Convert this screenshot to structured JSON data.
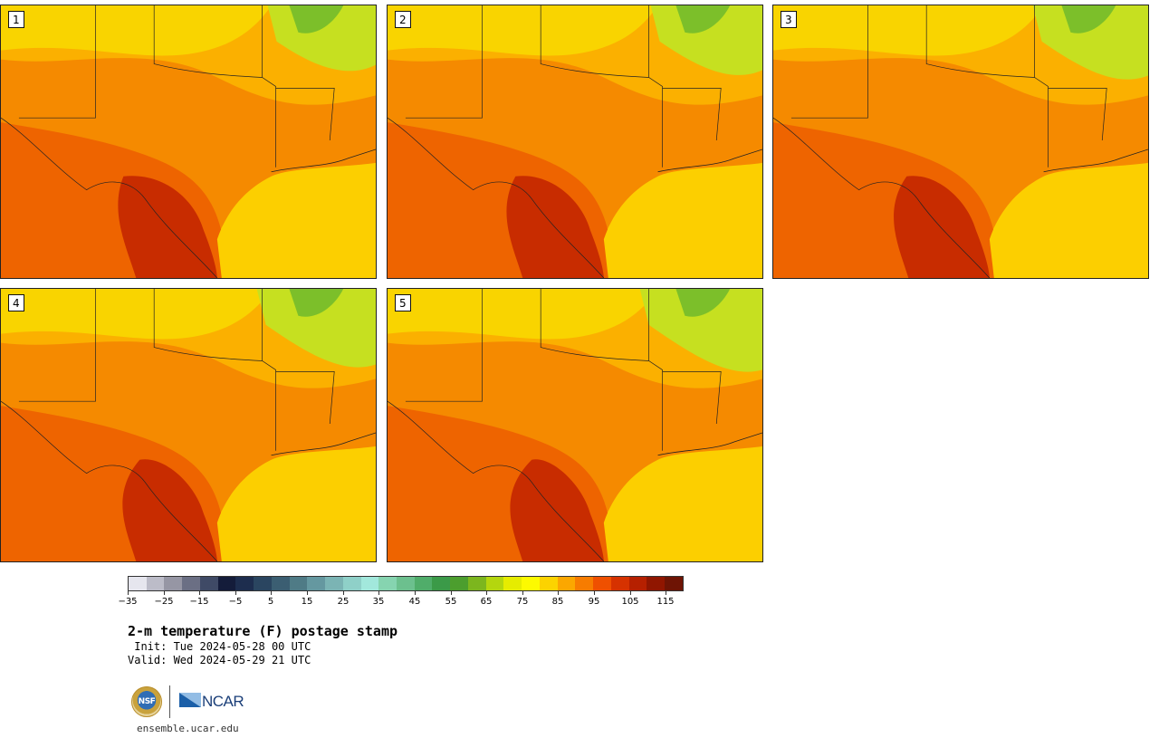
{
  "map": {
    "title": "2-m temperature (F) postage stamp",
    "init_line": " Init: Tue 2024-05-28 00 UTC",
    "valid_line": "Valid: Wed 2024-05-29 21 UTC",
    "colorbar": {
      "colors": [
        "#e6e6ee",
        "#bcbcc8",
        "#9696a4",
        "#6b6f84",
        "#3f4a66",
        "#141c3a",
        "#1d2d4e",
        "#2a4560",
        "#3b5e72",
        "#4f7b86",
        "#6598a0",
        "#7bb4b4",
        "#8fd0c8",
        "#a2e8dc",
        "#86d4b0",
        "#6cc08e",
        "#50ad6a",
        "#3b9a48",
        "#4c9e2e",
        "#7cb61e",
        "#b4d60e",
        "#e6ec00",
        "#fdfa00",
        "#fcd300",
        "#fba700",
        "#f77c00",
        "#ef5000",
        "#d63200",
        "#b62000",
        "#901600",
        "#6e1404"
      ],
      "tick_labels": [
        "−35",
        "−25",
        "−15",
        "−5",
        "5",
        "15",
        "25",
        "35",
        "45",
        "55",
        "65",
        "75",
        "85",
        "95",
        "105",
        "115"
      ]
    },
    "panels": [
      {
        "label": "1"
      },
      {
        "label": "2"
      },
      {
        "label": "3"
      },
      {
        "label": "4"
      },
      {
        "label": "5"
      }
    ],
    "footer": {
      "nsf_logo_text": "NSF",
      "ncar_logo_text": "NCAR",
      "url": "ensemble.ucar.edu"
    }
  }
}
